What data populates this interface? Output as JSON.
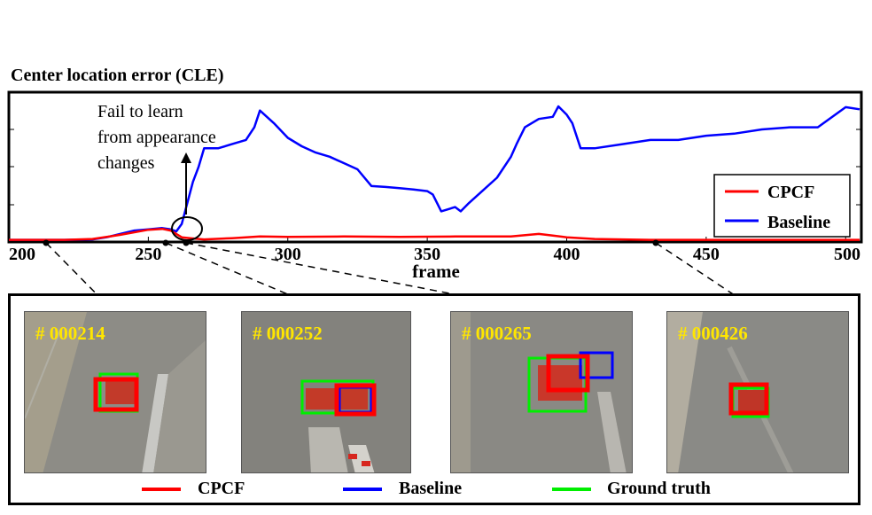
{
  "title": "Center location error (CLE)",
  "chart_data": {
    "type": "line",
    "title": "Center location error (CLE)",
    "xlabel": "frame",
    "ylabel": "",
    "xlim": [
      200,
      505
    ],
    "ylim": [
      0,
      340
    ],
    "x_ticks": [
      "200",
      "250",
      "300",
      "350",
      "400",
      "450",
      "500"
    ],
    "grid": false,
    "legend": "bottom-right",
    "series": [
      {
        "name": "CPCF",
        "color": "#ff0000",
        "x": [
          200,
          210,
          220,
          230,
          240,
          250,
          255,
          258,
          260,
          262,
          265,
          270,
          280,
          290,
          300,
          320,
          340,
          360,
          380,
          390,
          395,
          400,
          410,
          420,
          430,
          440,
          460,
          480,
          505
        ],
        "y": [
          2,
          2,
          2,
          4,
          14,
          26,
          28,
          24,
          16,
          8,
          6,
          3,
          6,
          10,
          9,
          10,
          9,
          10,
          10,
          16,
          12,
          8,
          4,
          3,
          2,
          2,
          2,
          2,
          2
        ]
      },
      {
        "name": "Baseline",
        "color": "#0000ff",
        "x": [
          200,
          210,
          220,
          230,
          235,
          240,
          245,
          250,
          255,
          258,
          260,
          262,
          264,
          266,
          268,
          270,
          275,
          280,
          285,
          288,
          290,
          295,
          300,
          305,
          310,
          315,
          320,
          325,
          330,
          335,
          340,
          345,
          350,
          352,
          355,
          360,
          362,
          365,
          370,
          375,
          380,
          382,
          385,
          390,
          395,
          397,
          400,
          402,
          405,
          410,
          420,
          430,
          440,
          450,
          460,
          470,
          480,
          490,
          500,
          505
        ],
        "y": [
          2,
          2,
          2,
          3,
          8,
          16,
          24,
          27,
          30,
          27,
          22,
          40,
          90,
          140,
          175,
          220,
          220,
          230,
          240,
          270,
          310,
          280,
          245,
          225,
          210,
          200,
          185,
          170,
          130,
          128,
          125,
          122,
          118,
          110,
          70,
          80,
          70,
          90,
          120,
          150,
          200,
          230,
          270,
          290,
          295,
          320,
          300,
          280,
          220,
          220,
          230,
          240,
          240,
          250,
          255,
          265,
          270,
          270,
          318,
          313
        ]
      }
    ]
  },
  "callout": {
    "lines": [
      "Fail to learn",
      "from appearance",
      "changes"
    ]
  },
  "frames": [
    {
      "id": "# 000214",
      "frame": 214
    },
    {
      "id": "# 000252",
      "frame": 252
    },
    {
      "id": "# 000265",
      "frame": 265
    },
    {
      "id": "# 000426",
      "frame": 426
    }
  ],
  "bottom_legend": [
    {
      "label": "CPCF",
      "color": "#ff0000"
    },
    {
      "label": "Baseline",
      "color": "#0000ff"
    },
    {
      "label": "Ground truth",
      "color": "#00ee00"
    }
  ]
}
